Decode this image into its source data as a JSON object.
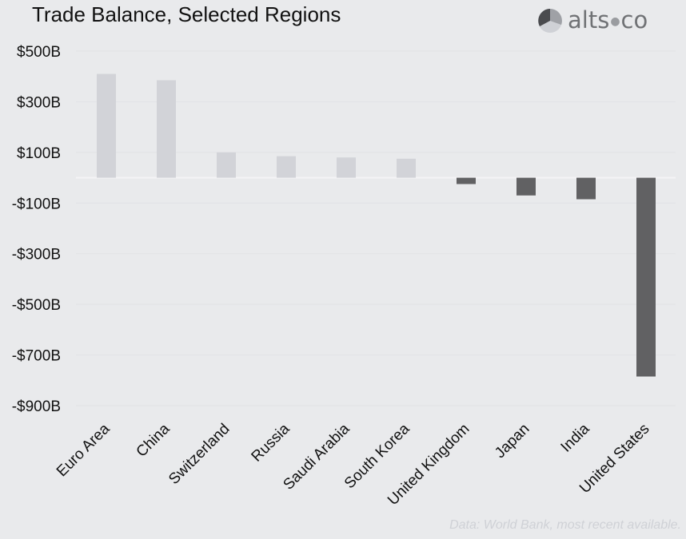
{
  "brand": {
    "logo_text": "alts",
    "logo_text_suffix": "co",
    "logo_icon": "pie-logo-icon",
    "colors": {
      "logo_text": "#707275",
      "logo_dark": "#4a4b4e",
      "logo_mid": "#9fa1a6",
      "logo_light": "#cfd1d6"
    }
  },
  "source_note": "Data: World Bank, most recent available.",
  "colors": {
    "background": "#e9eaec",
    "positive_bar": "#d2d3d8",
    "negative_bar": "#616163",
    "gridline": "#e1e2e5",
    "zero_line": "#f4f4f6"
  },
  "chart_data": {
    "type": "bar",
    "title": "Trade Balance, Selected Regions",
    "xlabel": "",
    "ylabel": "",
    "categories": [
      "Euro Area",
      "China",
      "Switzerland",
      "Russia",
      "Saudi Arabia",
      "South Korea",
      "United Kingdom",
      "Japan",
      "India",
      "United States"
    ],
    "values": [
      410,
      385,
      100,
      85,
      80,
      75,
      -25,
      -70,
      -85,
      -785
    ],
    "value_unit": "USD billions",
    "ylim": [
      -900,
      500
    ],
    "yticks": [
      500,
      300,
      100,
      -100,
      -300,
      -500,
      -700,
      -900
    ],
    "ytick_labels": [
      "$500B",
      "$300B",
      "$100B",
      "-$100B",
      "-$300B",
      "-$500B",
      "-$700B",
      "-$900B"
    ],
    "grid": true,
    "legend": "none"
  }
}
